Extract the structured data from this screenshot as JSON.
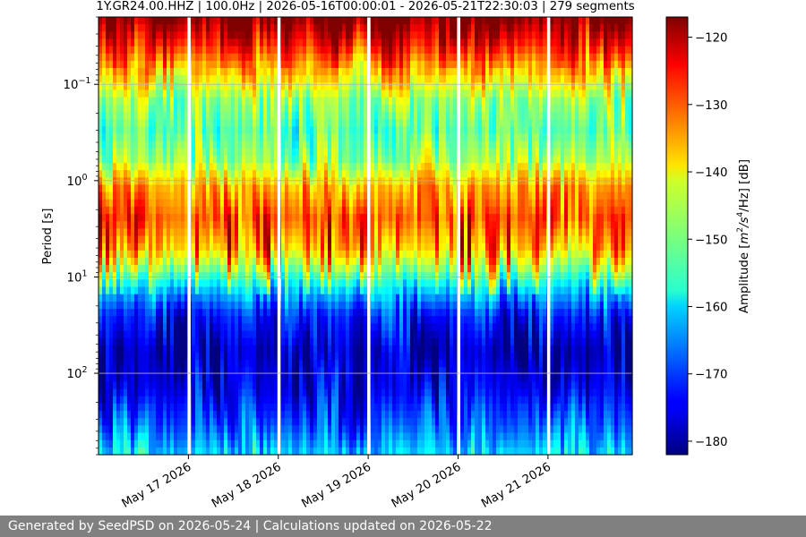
{
  "chart_data": {
    "type": "heatmap",
    "title": "1Y.GR24.00.HHZ | 100.0Hz | 2026-05-16T00:00:01 - 2026-05-21T22:30:03 | 279 segments",
    "xlabel": "",
    "ylabel": "Period [s]",
    "y_scale": "log",
    "y_inverted": true,
    "y_range": [
      0.02,
      700
    ],
    "y_ticks": [
      {
        "value": 0.1,
        "base": "10",
        "exp": "−1"
      },
      {
        "value": 1,
        "base": "10",
        "exp": "0"
      },
      {
        "value": 10,
        "base": "10",
        "exp": "1"
      },
      {
        "value": 100,
        "base": "10",
        "exp": "2"
      }
    ],
    "x_range": [
      "2026-05-16T00:00:01",
      "2026-05-21T22:30:03"
    ],
    "x_tick_labels": [
      {
        "date": "2026-05-17",
        "label": "May 17 2026"
      },
      {
        "date": "2026-05-18",
        "label": "May 18 2026"
      },
      {
        "date": "2026-05-19",
        "label": "May 19 2026"
      },
      {
        "date": "2026-05-20",
        "label": "May 20 2026"
      },
      {
        "date": "2026-05-21",
        "label": "May 21 2026"
      }
    ],
    "grid": true,
    "colormap": "jet",
    "colorbar": {
      "label_pre": "Amplitude [",
      "label_m": "m",
      "label_m_exp": "2",
      "label_mid": "/",
      "label_s": "s",
      "label_s_exp": "4",
      "label_post": "/Hz] [dB]",
      "range": [
        -182,
        -117
      ],
      "ticks": [
        "−120",
        "−130",
        "−140",
        "−150",
        "−160",
        "−170",
        "−180"
      ],
      "tick_values": [
        -120,
        -130,
        -140,
        -150,
        -160,
        -170,
        -180
      ]
    },
    "day_gaps": [
      "2026-05-17",
      "2026-05-18",
      "2026-05-19",
      "2026-05-20",
      "2026-05-21"
    ],
    "profile": [
      {
        "period": 0.02,
        "db": -116
      },
      {
        "period": 0.04,
        "db": -126
      },
      {
        "period": 0.08,
        "db": -138
      },
      {
        "period": 0.15,
        "db": -148
      },
      {
        "period": 0.3,
        "db": -152
      },
      {
        "period": 0.6,
        "db": -148
      },
      {
        "period": 1.2,
        "db": -136
      },
      {
        "period": 2.5,
        "db": -131
      },
      {
        "period": 5,
        "db": -138
      },
      {
        "period": 8,
        "db": -148
      },
      {
        "period": 13,
        "db": -160
      },
      {
        "period": 25,
        "db": -172
      },
      {
        "period": 60,
        "db": -178
      },
      {
        "period": 150,
        "db": -175
      },
      {
        "period": 350,
        "db": -168
      },
      {
        "period": 700,
        "db": -160
      }
    ]
  },
  "footer": {
    "text": "Generated by SeedPSD on 2026-05-24 | Calculations updated on 2026-05-22"
  }
}
